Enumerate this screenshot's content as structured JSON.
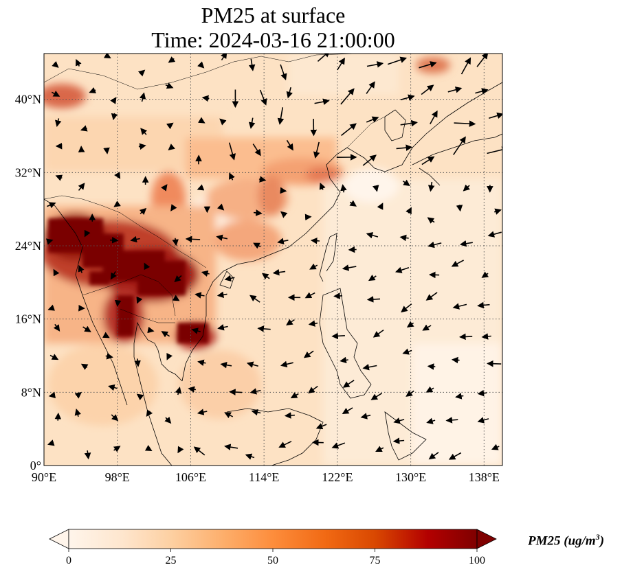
{
  "title_line1": "PM25 at surface",
  "title_line2": "Time: 2024-03-16 21:00:00",
  "map": {
    "lon_range": [
      90,
      140
    ],
    "lat_range": [
      0,
      45
    ],
    "lon_ticks": [
      {
        "value": 90,
        "label": "90°E"
      },
      {
        "value": 98,
        "label": "98°E"
      },
      {
        "value": 106,
        "label": "106°E"
      },
      {
        "value": 114,
        "label": "114°E"
      },
      {
        "value": 122,
        "label": "122°E"
      },
      {
        "value": 130,
        "label": "130°E"
      },
      {
        "value": 138,
        "label": "138°E"
      }
    ],
    "lat_ticks": [
      {
        "value": 0,
        "label": "0°"
      },
      {
        "value": 8,
        "label": "8°N"
      },
      {
        "value": 16,
        "label": "16°N"
      },
      {
        "value": 24,
        "label": "24°N"
      },
      {
        "value": 32,
        "label": "32°N"
      },
      {
        "value": 40,
        "label": "40°N"
      }
    ],
    "gridlines": true,
    "colormap": [
      "#fff5eb",
      "#fee6ce",
      "#fdd0a2",
      "#fdae6b",
      "#fd8d3c",
      "#f16913",
      "#d94801",
      "#a63603",
      "#7f2704"
    ],
    "background_color": "#fde3c6"
  },
  "colorbar": {
    "ticks": [
      {
        "value": 0,
        "label": "0"
      },
      {
        "value": 25,
        "label": "25"
      },
      {
        "value": 50,
        "label": "50"
      },
      {
        "value": 75,
        "label": "75"
      },
      {
        "value": 100,
        "label": "100"
      }
    ],
    "range": [
      0,
      100
    ],
    "extend": "both",
    "label_text": "PM25 (ug/m",
    "label_sup": "3",
    "label_close": ")"
  }
}
